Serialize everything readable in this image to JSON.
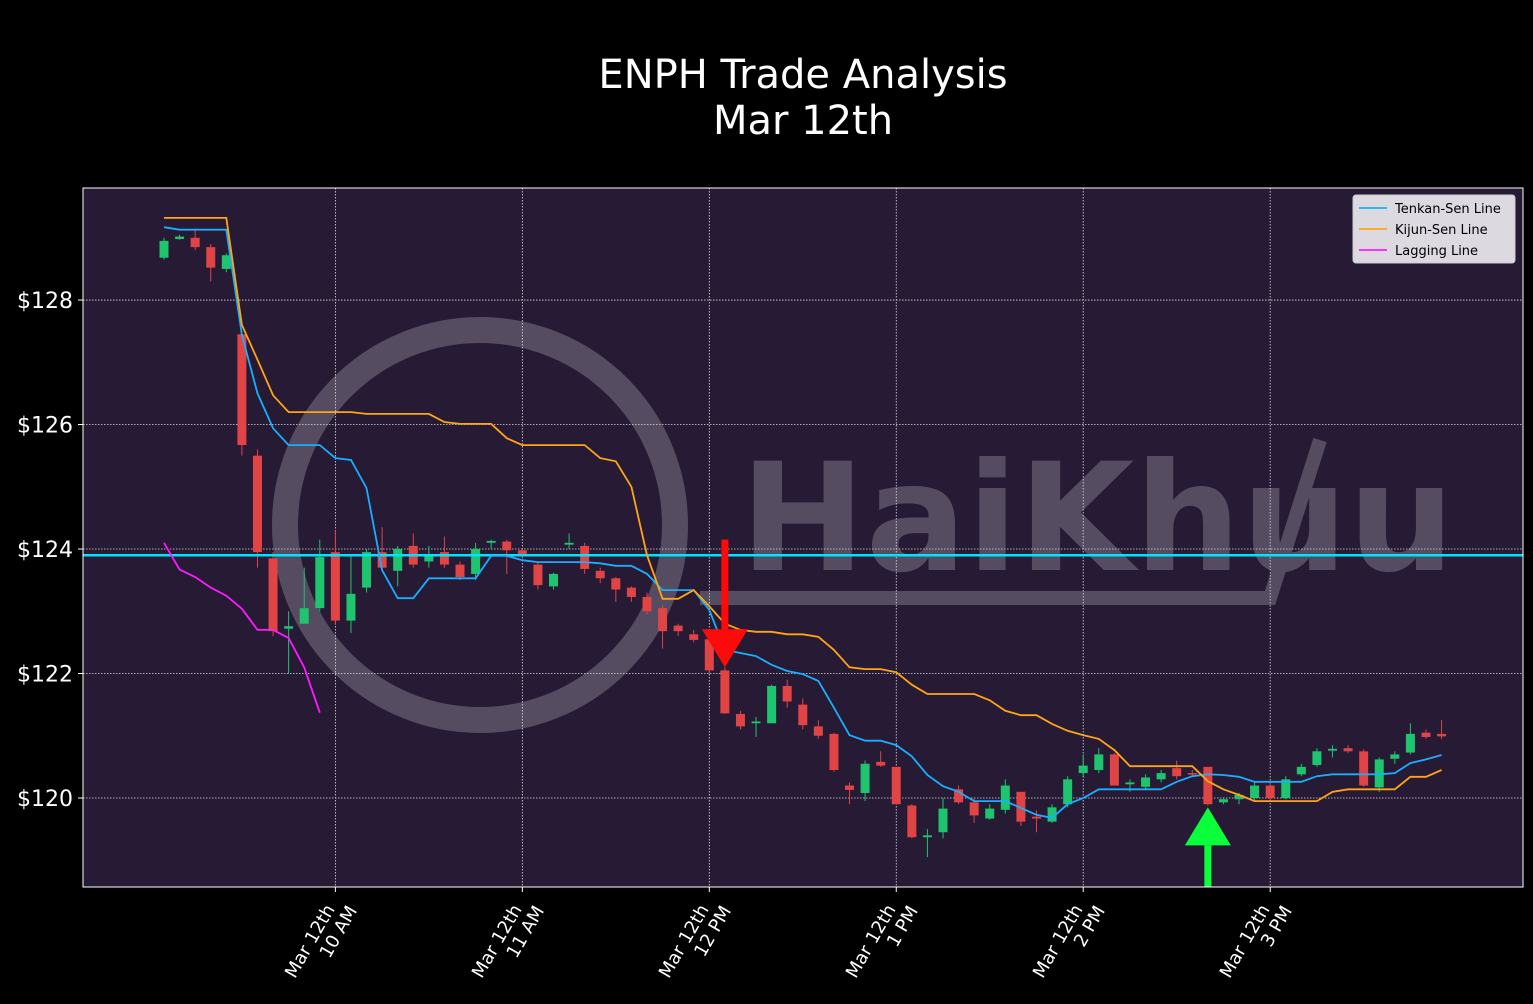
{
  "chart_data": {
    "type": "candlestick",
    "title": "ENPH Trade Analysis",
    "subtitle": "Mar 12th",
    "watermark": "HaiKhuu",
    "categories": [
      null,
      null,
      null,
      null,
      null,
      null,
      null,
      null,
      null,
      null,
      null,
      [
        "Mar 12th",
        "10 AM"
      ],
      null,
      null,
      null,
      null,
      null,
      null,
      null,
      null,
      null,
      null,
      null,
      [
        "Mar 12th",
        "11 AM"
      ],
      null,
      null,
      null,
      null,
      null,
      null,
      null,
      null,
      null,
      null,
      null,
      [
        "Mar 12th",
        "12 PM"
      ],
      null,
      null,
      null,
      null,
      null,
      null,
      null,
      null,
      null,
      null,
      null,
      [
        "Mar 12th",
        "1 PM"
      ],
      null,
      null,
      null,
      null,
      null,
      null,
      null,
      null,
      null,
      null,
      null,
      [
        "Mar 12th",
        "2 PM"
      ],
      null,
      null,
      null,
      null,
      null,
      null,
      null,
      null,
      null,
      null,
      null,
      [
        "Mar 12th",
        "3 PM"
      ],
      null,
      null,
      null,
      null,
      null,
      null,
      null,
      null,
      null,
      null,
      null
    ],
    "open": [
      128.68,
      128.98,
      129.0,
      128.85,
      128.5,
      127.45,
      125.5,
      123.85,
      122.72,
      122.8,
      123.05,
      123.95,
      122.85,
      123.38,
      123.95,
      123.65,
      124.05,
      123.8,
      123.95,
      123.75,
      123.6,
      124.1,
      124.12,
      123.98,
      123.75,
      123.4,
      124.07,
      124.05,
      123.65,
      123.53,
      123.38,
      123.23,
      123.05,
      122.77,
      122.63,
      122.55,
      122.05,
      121.35,
      121.2,
      121.2,
      121.8,
      121.5,
      121.15,
      121.03,
      120.2,
      120.08,
      120.58,
      120.5,
      119.88,
      119.37,
      119.45,
      120.14,
      119.93,
      119.67,
      119.81,
      120.1,
      119.7,
      119.62,
      119.9,
      120.4,
      120.45,
      120.7,
      120.22,
      120.18,
      120.3,
      120.48,
      120.4,
      120.5,
      119.93,
      119.98,
      120.0,
      120.2,
      120.0,
      120.38,
      120.53,
      120.76,
      120.8,
      120.75,
      120.17,
      120.63,
      120.73,
      121.05,
      121.03
    ],
    "high": [
      129.0,
      129.05,
      129.15,
      128.9,
      128.75,
      127.5,
      125.6,
      123.95,
      123.0,
      123.7,
      124.15,
      124.3,
      123.9,
      124.0,
      124.35,
      124.05,
      124.25,
      124.05,
      124.2,
      123.8,
      124.1,
      124.15,
      124.15,
      124.0,
      123.8,
      123.62,
      124.25,
      124.1,
      123.7,
      123.55,
      123.4,
      123.3,
      123.1,
      122.8,
      122.7,
      122.6,
      122.1,
      121.4,
      121.3,
      121.82,
      121.9,
      121.6,
      121.25,
      121.05,
      120.25,
      120.6,
      120.75,
      120.5,
      119.9,
      119.5,
      120.0,
      120.2,
      120.0,
      119.9,
      120.3,
      120.1,
      119.8,
      119.9,
      120.35,
      120.7,
      120.8,
      120.72,
      120.3,
      120.38,
      120.45,
      120.6,
      120.45,
      120.5,
      120.0,
      120.08,
      120.25,
      120.25,
      120.35,
      120.55,
      120.8,
      120.85,
      120.85,
      120.78,
      120.65,
      120.75,
      121.2,
      121.1,
      121.25
    ],
    "low": [
      128.65,
      128.97,
      128.8,
      128.3,
      128.45,
      125.5,
      123.7,
      122.6,
      122.0,
      122.8,
      123.0,
      122.8,
      122.65,
      123.3,
      123.65,
      123.4,
      123.7,
      123.7,
      123.7,
      123.5,
      123.5,
      124.0,
      123.6,
      123.85,
      123.35,
      123.35,
      124.0,
      123.6,
      123.45,
      123.15,
      123.15,
      122.95,
      122.4,
      122.6,
      122.5,
      122.0,
      121.35,
      121.1,
      120.98,
      121.2,
      121.45,
      121.1,
      120.95,
      120.42,
      119.9,
      119.95,
      120.5,
      119.9,
      119.35,
      119.05,
      119.35,
      119.9,
      119.6,
      119.65,
      119.75,
      119.55,
      119.45,
      119.6,
      119.85,
      120.35,
      120.4,
      120.2,
      120.1,
      120.15,
      120.25,
      120.3,
      120.35,
      119.88,
      119.9,
      119.9,
      119.95,
      119.95,
      119.98,
      120.35,
      120.5,
      120.65,
      120.72,
      120.18,
      120.1,
      120.55,
      120.7,
      120.95,
      120.95
    ],
    "close": [
      128.95,
      129.02,
      128.85,
      128.52,
      128.72,
      125.67,
      123.95,
      122.68,
      122.76,
      123.05,
      123.87,
      122.85,
      123.28,
      123.95,
      123.7,
      124.0,
      123.75,
      123.9,
      123.75,
      123.55,
      124.0,
      124.13,
      123.98,
      123.9,
      123.42,
      123.6,
      124.1,
      123.68,
      123.53,
      123.35,
      123.23,
      123.0,
      122.68,
      122.68,
      122.54,
      122.05,
      121.36,
      121.15,
      121.23,
      121.8,
      121.55,
      121.17,
      121.0,
      120.45,
      120.13,
      120.55,
      120.52,
      119.9,
      119.37,
      119.4,
      119.83,
      119.93,
      119.72,
      119.83,
      120.2,
      119.62,
      119.67,
      119.85,
      120.3,
      120.52,
      120.7,
      120.2,
      120.25,
      120.33,
      120.4,
      120.35,
      120.38,
      119.9,
      119.98,
      120.05,
      120.2,
      120.0,
      120.3,
      120.5,
      120.75,
      120.79,
      120.75,
      120.2,
      120.62,
      120.7,
      121.03,
      120.98,
      120.99
    ],
    "up_color": "#1ec46e",
    "down_color": "#e04444",
    "series": [
      {
        "name": "Tenkan-Sen Line",
        "color": "#1aaeff",
        "values": [
          129.17,
          129.13,
          129.13,
          129.13,
          129.13,
          127.44,
          126.5,
          125.94,
          125.67,
          125.67,
          125.67,
          125.46,
          125.43,
          124.98,
          123.66,
          123.21,
          123.21,
          123.53,
          123.53,
          123.53,
          123.53,
          123.89,
          123.89,
          123.82,
          123.79,
          123.79,
          123.79,
          123.79,
          123.77,
          123.73,
          123.73,
          123.6,
          123.34,
          123.34,
          123.34,
          123.02,
          122.38,
          122.33,
          122.28,
          122.14,
          122.04,
          121.99,
          121.88,
          121.45,
          121.01,
          120.92,
          120.92,
          120.85,
          120.67,
          120.37,
          120.19,
          120.1,
          119.95,
          119.95,
          119.95,
          119.84,
          119.73,
          119.68,
          119.9,
          120.0,
          120.14,
          120.14,
          120.14,
          120.14,
          120.14,
          120.26,
          120.35,
          120.38,
          120.37,
          120.34,
          120.26,
          120.26,
          120.26,
          120.26,
          120.35,
          120.38,
          120.38,
          120.38,
          120.38,
          120.4,
          120.56,
          120.62,
          120.69
        ]
      },
      {
        "name": "Kijun-Sen Line",
        "color": "#ffa514",
        "values": [
          129.32,
          129.32,
          129.32,
          129.32,
          129.32,
          127.6,
          127.04,
          126.47,
          126.2,
          126.2,
          126.2,
          126.2,
          126.2,
          126.17,
          126.17,
          126.17,
          126.17,
          126.17,
          126.04,
          126.01,
          126.01,
          126.01,
          125.78,
          125.67,
          125.67,
          125.67,
          125.67,
          125.67,
          125.46,
          125.41,
          125.0,
          123.9,
          123.2,
          123.2,
          123.34,
          123.08,
          122.8,
          122.7,
          122.67,
          122.67,
          122.63,
          122.63,
          122.59,
          122.38,
          122.1,
          122.07,
          122.07,
          122.02,
          121.82,
          121.67,
          121.67,
          121.67,
          121.67,
          121.57,
          121.4,
          121.33,
          121.33,
          121.19,
          121.08,
          121.01,
          120.95,
          120.77,
          120.51,
          120.51,
          120.51,
          120.51,
          120.51,
          120.27,
          120.14,
          120.05,
          119.95,
          119.95,
          119.95,
          119.95,
          119.95,
          120.1,
          120.14,
          120.14,
          120.14,
          120.14,
          120.34,
          120.34,
          120.45
        ]
      },
      {
        "name": "Lagging Line",
        "color": "#ff1aff",
        "values": [
          124.1,
          123.67,
          123.55,
          123.38,
          123.25,
          123.04,
          122.7,
          122.7,
          122.57,
          122.1,
          121.37,
          null,
          null,
          null,
          null,
          null,
          null,
          null,
          null,
          null,
          null,
          null,
          null,
          null,
          null,
          null,
          null,
          null,
          null,
          null,
          null,
          null,
          null,
          null,
          null,
          null,
          null,
          null,
          null,
          null,
          null,
          null,
          null,
          null,
          null,
          null,
          null,
          null,
          null,
          null,
          null,
          null,
          null,
          null,
          null,
          null,
          null,
          null,
          null,
          null,
          null,
          null,
          null,
          null,
          null,
          null,
          null,
          null,
          null,
          null,
          null,
          null,
          null,
          null,
          null,
          null,
          null,
          null,
          null,
          null,
          null,
          null,
          null
        ]
      }
    ],
    "level": {
      "value": 123.9,
      "color": "#00e5ff"
    },
    "arrows": [
      {
        "at": 36,
        "from": 124.15,
        "to": 122.1,
        "color": "#ff0a0a"
      },
      {
        "at": 67,
        "from": 118.57,
        "to": 119.85,
        "color": "#0aff3a"
      }
    ],
    "ylim": [
      118.57,
      129.8
    ],
    "yticks": [
      {
        "value": 120,
        "label": "$120"
      },
      {
        "value": 122,
        "label": "$122"
      },
      {
        "value": 124,
        "label": "$124"
      },
      {
        "value": 126,
        "label": "$126"
      },
      {
        "value": 128,
        "label": "$128"
      }
    ],
    "grid": true,
    "legend": "upper right"
  }
}
